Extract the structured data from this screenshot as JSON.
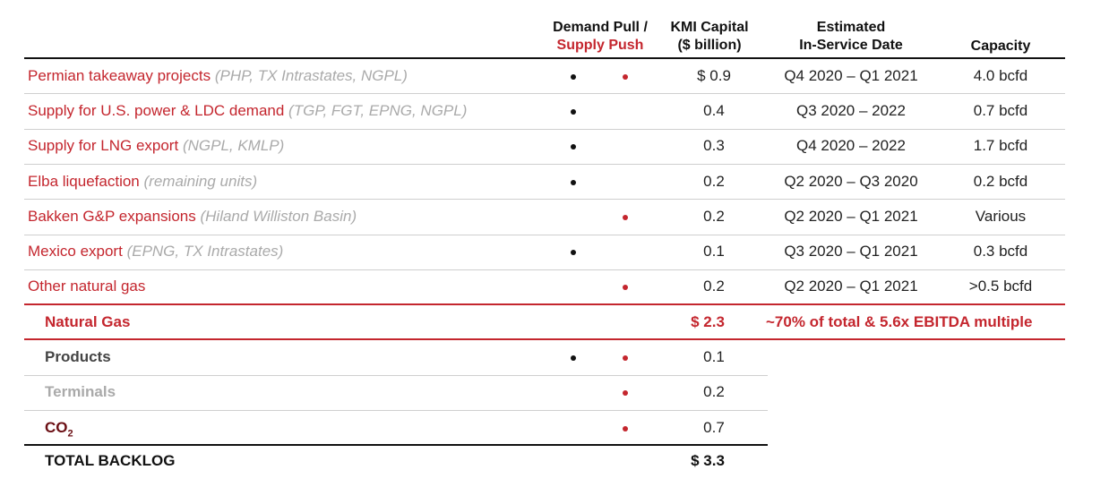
{
  "header": {
    "col_pull_line1": "Demand Pull /",
    "col_pull_line2": "Supply Push",
    "col_capital_line1": "KMI Capital",
    "col_capital_line2": "($ billion)",
    "col_date_line1": "Estimated",
    "col_date_line2": "In-Service Date",
    "col_capacity": "Capacity"
  },
  "gas_rows": [
    {
      "name": "Permian takeaway projects",
      "detail": "(PHP, TX Intrastates, NGPL)",
      "demand": true,
      "supply": true,
      "capital": "$ 0.9",
      "date": "Q4 2020 – Q1 2021",
      "capacity": "4.0 bcfd"
    },
    {
      "name": "Supply for U.S. power & LDC demand",
      "detail": "(TGP, FGT, EPNG, NGPL)",
      "demand": true,
      "supply": false,
      "capital": "0.4",
      "date": "Q3 2020 – 2022",
      "capacity": "0.7 bcfd"
    },
    {
      "name": "Supply for LNG export",
      "detail": "(NGPL, KMLP)",
      "demand": true,
      "supply": false,
      "capital": "0.3",
      "date": "Q4 2020 – 2022",
      "capacity": "1.7 bcfd"
    },
    {
      "name": "Elba liquefaction",
      "detail": "(remaining units)",
      "demand": true,
      "supply": false,
      "capital": "0.2",
      "date": "Q2 2020 – Q3 2020",
      "capacity": "0.2 bcfd"
    },
    {
      "name": "Bakken G&P expansions",
      "detail": "(Hiland Williston Basin)",
      "demand": false,
      "supply": true,
      "capital": "0.2",
      "date": "Q2 2020 – Q1 2021",
      "capacity": "Various"
    },
    {
      "name": "Mexico export",
      "detail": "(EPNG, TX Intrastates)",
      "demand": true,
      "supply": false,
      "capital": "0.1",
      "date": "Q3 2020 – Q1 2021",
      "capacity": "0.3 bcfd"
    },
    {
      "name": "Other natural gas",
      "detail": "",
      "demand": false,
      "supply": true,
      "capital": "0.2",
      "date": "Q2 2020 –  Q1 2021",
      "capacity": ">0.5 bcfd"
    }
  ],
  "gas_total": {
    "label": "Natural Gas",
    "capital": "$ 2.3",
    "note": "~70% of total & 5.6x EBITDA multiple"
  },
  "other_rows": [
    {
      "name": "Products",
      "demand": true,
      "supply": true,
      "capital": "0.1"
    },
    {
      "name": "Terminals",
      "demand": false,
      "supply": true,
      "capital": "0.2"
    },
    {
      "name": "CO",
      "sub": "2",
      "demand": false,
      "supply": true,
      "capital": "0.7"
    }
  ],
  "total": {
    "label": "TOTAL BACKLOG",
    "capital": "$ 3.3"
  },
  "colors": {
    "accent_red": "#c4262e",
    "muted_gray": "#aaaaaa"
  }
}
